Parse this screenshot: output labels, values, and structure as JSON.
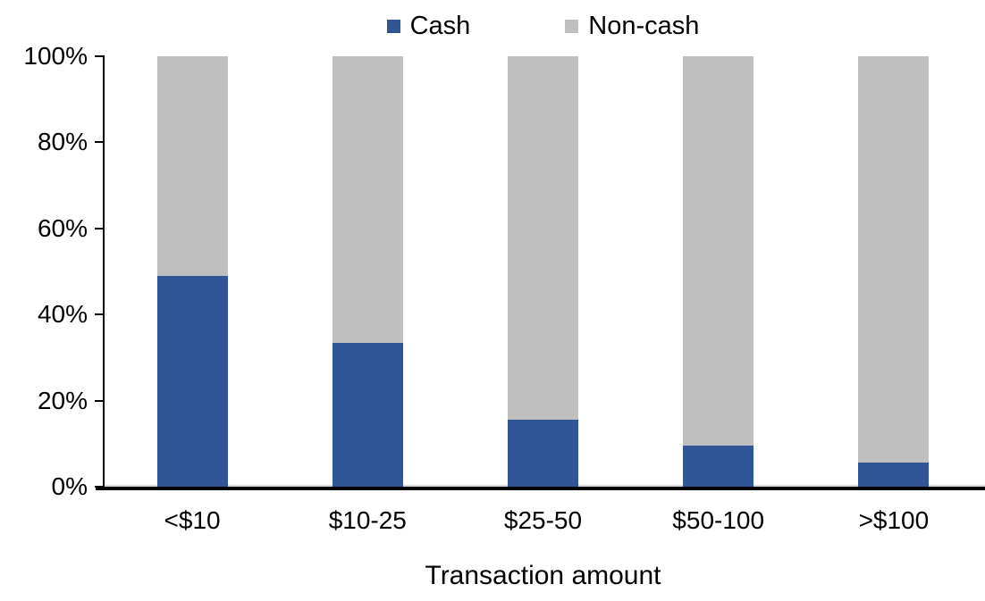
{
  "chart_data": {
    "type": "bar",
    "stacked": true,
    "percent_stacked": true,
    "title": "",
    "xlabel": "Transaction amount",
    "ylabel": "",
    "categories": [
      "<$10",
      "$10-25",
      "$25-50",
      "$50-100",
      ">$100"
    ],
    "series": [
      {
        "name": "Cash",
        "color": "#2F5597",
        "values": [
          49,
          33.5,
          15.5,
          9.5,
          5.5
        ]
      },
      {
        "name": "Non-cash",
        "color": "#BFBFBF",
        "values": [
          51,
          66.5,
          84.5,
          90.5,
          94.5
        ]
      }
    ],
    "ylim": [
      0,
      100
    ],
    "ytick_labels": [
      "0%",
      "20%",
      "40%",
      "60%",
      "80%",
      "100%"
    ],
    "legend_position": "top-center",
    "grid": false,
    "axis_color": "#000000",
    "background_color": "#FFFFFF"
  }
}
